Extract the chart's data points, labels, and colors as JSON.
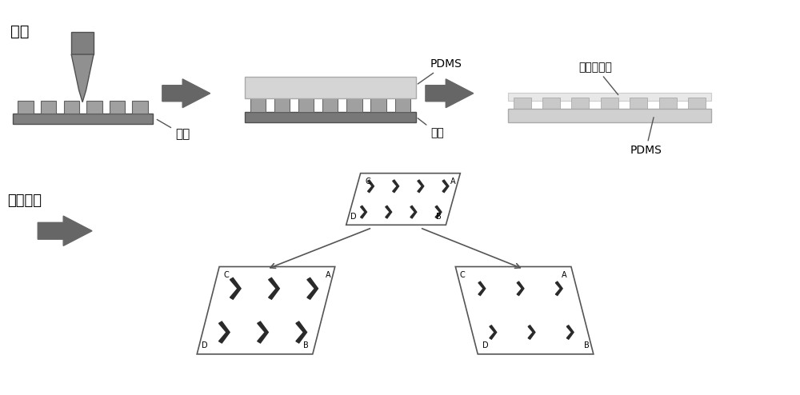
{
  "bg_color": "#ffffff",
  "text_color": "#000000",
  "arrow_fill": "#666666",
  "dark_gray": "#707070",
  "mid_gray": "#909090",
  "light_gray": "#c0c0c0",
  "very_light_gray": "#e0e0e0",
  "panel_edge": "#555555",
  "chevron_color": "#2a2a2a",
  "label_guangke": "光刻",
  "label_guipian1": "硅片",
  "label_PDMS1": "PDMS",
  "label_guipian2": "硅片",
  "label_dimethyl": "二甲基硫油",
  "label_PDMS2": "PDMS",
  "label_dianchangkongzhi": "电场控制",
  "label_A": "A",
  "label_B": "B",
  "label_C": "C",
  "label_D": "D"
}
